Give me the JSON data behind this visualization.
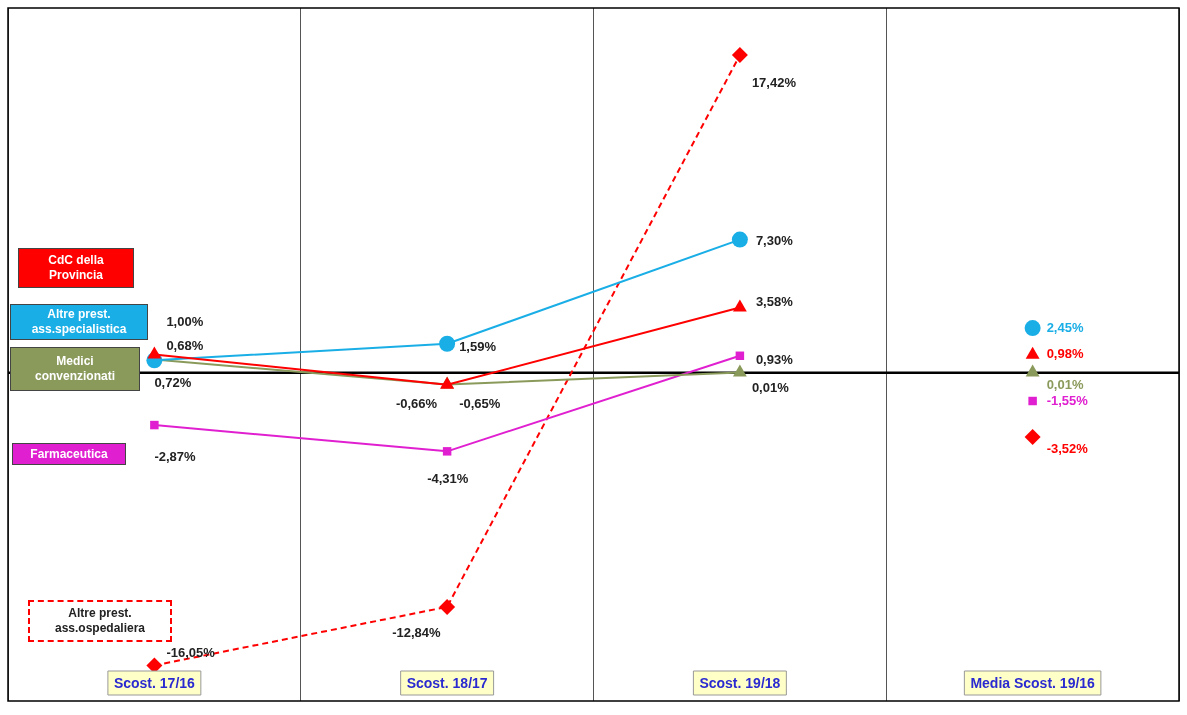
{
  "chart_data": {
    "type": "line",
    "categories": [
      "Scost. 17/16",
      "Scost. 18/17",
      "Scost. 19/18",
      "Media Scost. 19/16"
    ],
    "ylim": [
      -18,
      20
    ],
    "grid": "x",
    "legend": "left",
    "tick_labels": "x",
    "ref_lines": [
      {
        "axis": "y",
        "value": 0,
        "color": "#000000"
      }
    ],
    "series": [
      {
        "name": "CdC della Provincia",
        "color": "#ff0000",
        "marker": "triangle",
        "values": [
          1.0,
          -0.66,
          3.58,
          null
        ],
        "value_labels": [
          "1,00%",
          "-0,66%",
          "3,58%",
          null
        ]
      },
      {
        "name": "Altre prest. ass.specialistica",
        "color": "#1aaee6",
        "marker": "circle",
        "values": [
          0.68,
          1.59,
          7.3,
          null
        ],
        "value_labels": [
          "0,68%",
          "1,59%",
          "7,30%",
          null
        ]
      },
      {
        "name": "Medici convenzionati",
        "color": "#8a9a5b",
        "marker": "triangle",
        "values": [
          0.72,
          -0.65,
          0.01,
          null
        ],
        "value_labels": [
          "0,72%",
          "-0,65%",
          "0,01%",
          null
        ]
      },
      {
        "name": "Farmaceutica",
        "color": "#e020d0",
        "marker": "square",
        "values": [
          -2.87,
          -4.31,
          0.93,
          null
        ],
        "value_labels": [
          "-2,87%",
          "-4,31%",
          "0,93%",
          null
        ]
      },
      {
        "name": "Altre prest. ass.ospedaliera",
        "color": "#ff0000",
        "marker": "diamond",
        "line_style": "dashed",
        "values": [
          -16.05,
          -12.84,
          17.42,
          null
        ],
        "value_labels": [
          "-16,05%",
          "-12,84%",
          "17,42%",
          null
        ]
      },
      {
        "type": "scatter",
        "color": "#1aaee6",
        "marker": "circle",
        "x": [
          "Media Scost. 19/16"
        ],
        "values": [
          2.45
        ],
        "value_labels": [
          "2,45%"
        ]
      },
      {
        "type": "scatter",
        "color": "#ff0000",
        "marker": "triangle",
        "x": [
          "Media Scost. 19/16"
        ],
        "values": [
          0.98
        ],
        "value_labels": [
          "0,98%"
        ]
      },
      {
        "type": "scatter",
        "color": "#8a9a5b",
        "marker": "triangle",
        "x": [
          "Media Scost. 19/16"
        ],
        "values": [
          0.01
        ],
        "value_labels": [
          "0,01%"
        ]
      },
      {
        "type": "scatter",
        "color": "#e020d0",
        "marker": "square",
        "x": [
          "Media Scost. 19/16"
        ],
        "values": [
          -1.55
        ],
        "value_labels": [
          "-1,55%"
        ]
      },
      {
        "type": "scatter",
        "color": "#ff0000",
        "marker": "diamond",
        "x": [
          "Media Scost. 19/16"
        ],
        "values": [
          -3.52
        ],
        "value_labels": [
          "-3,52%"
        ]
      }
    ]
  }
}
